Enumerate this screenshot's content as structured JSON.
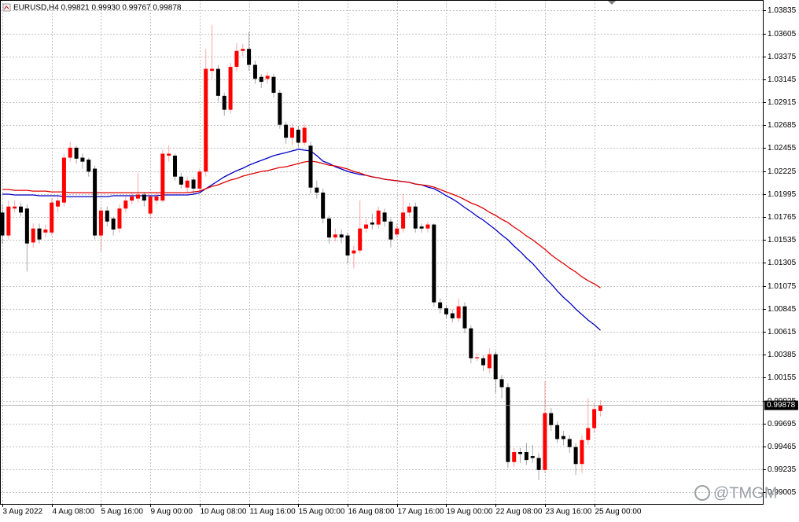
{
  "chart_data": {
    "type": "candlestick",
    "title": "EURUSD,H4  0.99821 0.99930 0.99767 0.99878",
    "categories": [
      "3 Aug 2022",
      null,
      null,
      null,
      null,
      null,
      null,
      null,
      "4 Aug 08:00",
      null,
      null,
      null,
      null,
      null,
      null,
      null,
      "5 Aug 16:00",
      null,
      null,
      null,
      null,
      null,
      null,
      null,
      "9 Aug 00:00",
      null,
      null,
      null,
      null,
      null,
      null,
      null,
      "10 Aug 08:00",
      null,
      null,
      null,
      null,
      null,
      null,
      null,
      "11 Aug 16:00",
      null,
      null,
      null,
      null,
      null,
      null,
      null,
      "15 Aug 00:00",
      null,
      null,
      null,
      null,
      null,
      null,
      null,
      "16 Aug 08:00",
      null,
      null,
      null,
      null,
      null,
      null,
      null,
      "17 Aug 16:00",
      null,
      null,
      null,
      null,
      null,
      null,
      null,
      "19 Aug 00:00",
      null,
      null,
      null,
      null,
      null,
      null,
      null,
      "22 Aug 08:00",
      null,
      null,
      null,
      null,
      null,
      null,
      null,
      "23 Aug 16:00",
      null,
      null,
      null,
      null,
      null,
      null,
      null,
      "25 Aug 00:00",
      null
    ],
    "open": [
      1.0181,
      1.0158,
      1.0185,
      1.0187,
      1.0185,
      1.0151,
      1.0165,
      1.0161,
      1.0161,
      1.0187,
      1.0191,
      1.0236,
      1.0246,
      1.0236,
      1.0234,
      1.0225,
      1.0158,
      1.0183,
      1.0175,
      1.0165,
      1.0185,
      1.0193,
      1.0195,
      1.0199,
      1.018,
      1.0193,
      1.0193,
      1.0238,
      1.0238,
      1.0217,
      1.0206,
      1.0214,
      1.0205,
      1.0222,
      1.0323,
      1.0325,
      1.0298,
      1.0284,
      1.0327,
      1.0343,
      1.0345,
      1.0329,
      1.0317,
      1.0315,
      1.0317,
      1.0301,
      1.0269,
      1.0256,
      1.0264,
      1.0251,
      1.0248,
      1.0206,
      1.0201,
      1.0175,
      1.0156,
      1.0159,
      1.0158,
      1.014,
      1.0143,
      1.0165,
      1.0171,
      1.0169,
      1.0181,
      1.0172,
      1.0159,
      1.0165,
      1.0181,
      1.0187,
      1.0167,
      1.0165,
      1.0169,
      1.0091,
      1.0085,
      1.008,
      1.0075,
      1.0087,
      1.0065,
      1.0035,
      1.0035,
      1.0025,
      1.0039,
      1.0014,
      1.0006,
      0.9931,
      0.9941,
      0.9941,
      0.9937,
      0.9935,
      0.9923,
      0.998,
      0.9968,
      0.9957,
      0.9954,
      0.9946,
      0.9929,
      0.9953,
      0.9965,
      0.99821
    ],
    "high": [
      1.0189,
      1.0193,
      1.0193,
      1.0191,
      1.0189,
      1.017,
      1.017,
      1.0169,
      1.0195,
      1.0197,
      1.024,
      1.0252,
      1.0248,
      1.024,
      1.0236,
      1.0228,
      1.0187,
      1.0187,
      1.0177,
      1.0189,
      1.0197,
      1.0201,
      1.0221,
      1.0201,
      1.0199,
      1.0201,
      1.0244,
      1.0248,
      1.024,
      1.0221,
      1.0217,
      1.0217,
      1.0225,
      1.0345,
      1.0369,
      1.0329,
      1.0301,
      1.0331,
      1.0351,
      1.035,
      1.0362,
      1.0333,
      1.032,
      1.0322,
      1.032,
      1.0304,
      1.0272,
      1.027,
      1.0268,
      1.027,
      1.0252,
      1.0213,
      1.0205,
      1.0178,
      1.0165,
      1.0164,
      1.0161,
      1.0148,
      1.0193,
      1.0175,
      1.018,
      1.0187,
      1.0185,
      1.0175,
      1.017,
      1.02,
      1.0191,
      1.0191,
      1.017,
      1.0172,
      1.017,
      1.0095,
      1.0088,
      1.0084,
      1.0095,
      1.0091,
      1.0068,
      1.004,
      1.0038,
      1.0045,
      1.0042,
      1.0018,
      1.001,
      0.9945,
      0.9945,
      0.995,
      0.9948,
      0.994,
      1.0012,
      0.9985,
      0.9972,
      0.9962,
      0.9958,
      0.995,
      0.9958,
      0.9995,
      0.999,
      0.9993
    ],
    "low": [
      1.015,
      1.0154,
      1.0181,
      1.0177,
      1.0122,
      1.0146,
      1.015,
      1.0156,
      1.0158,
      1.0181,
      1.0187,
      1.0232,
      1.023,
      1.0225,
      1.0217,
      1.0154,
      1.0142,
      1.0167,
      1.0158,
      1.0161,
      1.0181,
      1.0189,
      1.0191,
      1.0187,
      1.0175,
      1.0189,
      1.0191,
      1.0232,
      1.0213,
      1.0205,
      1.0201,
      1.0199,
      1.0201,
      1.0217,
      1.0315,
      1.0292,
      1.0278,
      1.028,
      1.0323,
      1.0338,
      1.0323,
      1.031,
      1.0306,
      1.031,
      1.0296,
      1.0265,
      1.025,
      1.0248,
      1.0246,
      1.0248,
      1.02,
      1.0195,
      1.017,
      1.015,
      1.0152,
      1.015,
      1.013,
      1.0125,
      1.014,
      1.0161,
      1.0164,
      1.0165,
      1.0167,
      1.0146,
      1.0156,
      1.0161,
      1.0177,
      1.0161,
      1.0161,
      1.0161,
      1.0087,
      1.008,
      1.0075,
      1.0071,
      1.0071,
      1.006,
      1.003,
      1.0032,
      1.0022,
      1.002,
      1.0,
      0.9995,
      0.9925,
      0.9926,
      0.993,
      0.9928,
      0.993,
      0.9913,
      0.992,
      0.9962,
      0.995,
      0.9948,
      0.994,
      0.9918,
      0.992,
      0.9948,
      0.996,
      0.99767
    ],
    "close": [
      1.0158,
      1.0187,
      1.0187,
      1.0181,
      1.015,
      1.0165,
      1.0154,
      1.0164,
      1.0191,
      1.0193,
      1.0236,
      1.0246,
      1.0235,
      1.0232,
      1.0222,
      1.0158,
      1.0183,
      1.0172,
      1.0164,
      1.0185,
      1.0193,
      1.0197,
      1.0199,
      1.0193,
      1.0197,
      1.0197,
      1.024,
      1.024,
      1.0217,
      1.0209,
      1.0213,
      1.0205,
      1.0222,
      1.0325,
      1.0325,
      1.0298,
      1.0284,
      1.0327,
      1.0343,
      1.0345,
      1.0329,
      1.0315,
      1.0312,
      1.0318,
      1.0301,
      1.0269,
      1.0256,
      1.0266,
      1.0251,
      1.0266,
      1.0206,
      1.0201,
      1.0175,
      1.0156,
      1.0159,
      1.0156,
      1.0138,
      1.0143,
      1.0165,
      1.0169,
      1.0169,
      1.0183,
      1.0172,
      1.0154,
      1.0165,
      1.0181,
      1.0187,
      1.0165,
      1.0165,
      1.0169,
      1.0091,
      1.0085,
      1.0079,
      1.0075,
      1.0087,
      1.0065,
      1.0035,
      1.0036,
      1.0028,
      1.0039,
      1.0014,
      1.0006,
      0.9931,
      0.9941,
      0.9939,
      0.9933,
      0.9935,
      0.9923,
      0.998,
      0.9968,
      0.9954,
      0.9954,
      0.9946,
      0.9929,
      0.9953,
      0.9965,
      0.9984,
      0.99878
    ],
    "up_color": "#ff0000",
    "down_color": "#000000",
    "lines": [
      {
        "color": "#0000c8",
        "values": [
          1.01994,
          1.01994,
          1.01986,
          1.01986,
          1.01986,
          1.01986,
          1.01978,
          1.01978,
          1.01978,
          1.01978,
          1.0197,
          1.0197,
          1.0197,
          1.0197,
          1.0197,
          1.0197,
          1.0197,
          1.0197,
          1.01978,
          1.01978,
          1.01978,
          1.01978,
          1.01978,
          1.01978,
          1.01978,
          1.01978,
          1.01986,
          1.01986,
          1.01986,
          1.01986,
          1.01986,
          1.01994,
          1.02009,
          1.02049,
          1.02088,
          1.02128,
          1.02167,
          1.02199,
          1.0223,
          1.02254,
          1.02285,
          1.02309,
          1.02333,
          1.02356,
          1.0238,
          1.02396,
          1.02411,
          1.02427,
          1.02443,
          1.02435,
          1.02427,
          1.0238,
          1.02325,
          1.02301,
          1.02269,
          1.02246,
          1.02222,
          1.02206,
          1.02191,
          1.02183,
          1.02167,
          1.02159,
          1.02143,
          1.02136,
          1.02128,
          1.0212,
          1.02112,
          1.02096,
          1.02088,
          1.02065,
          1.02049,
          1.02017,
          1.01978,
          1.01946,
          1.01907,
          1.0186,
          1.0182,
          1.01773,
          1.01734,
          1.01686,
          1.01639,
          1.01584,
          1.01537,
          1.01474,
          1.01418,
          1.01355,
          1.013,
          1.01229,
          1.01158,
          1.01095,
          1.01024,
          1.00961,
          1.00906,
          1.00843,
          1.00788,
          1.00733,
          1.00686,
          1.0063
        ]
      },
      {
        "color": "#e00000",
        "values": [
          1.02041,
          1.02041,
          1.02033,
          1.02033,
          1.02033,
          1.02025,
          1.02025,
          1.02025,
          1.02017,
          1.02017,
          1.02017,
          1.02009,
          1.02009,
          1.02009,
          1.02009,
          1.02009,
          1.02009,
          1.02009,
          1.02009,
          1.02009,
          1.02009,
          1.02009,
          1.02009,
          1.02009,
          1.02009,
          1.02009,
          1.02009,
          1.02009,
          1.02009,
          1.02009,
          1.02009,
          1.02017,
          1.02025,
          1.02049,
          1.02072,
          1.02088,
          1.02112,
          1.02136,
          1.02151,
          1.02175,
          1.02191,
          1.02206,
          1.02222,
          1.0223,
          1.02246,
          1.02262,
          1.02269,
          1.02285,
          1.02301,
          1.02317,
          1.02325,
          1.02317,
          1.02301,
          1.02285,
          1.02277,
          1.02262,
          1.02246,
          1.02222,
          1.02206,
          1.02183,
          1.02167,
          1.02159,
          1.02143,
          1.02136,
          1.02128,
          1.0212,
          1.02112,
          1.02096,
          1.02088,
          1.0208,
          1.02065,
          1.02041,
          1.02017,
          1.01994,
          1.0197,
          1.01939,
          1.01907,
          1.01883,
          1.01852,
          1.01812,
          1.01781,
          1.01742,
          1.0171,
          1.01663,
          1.01623,
          1.01576,
          1.01537,
          1.01489,
          1.01442,
          1.01387,
          1.0134,
          1.013,
          1.01253,
          1.01214,
          1.01166,
          1.01127,
          1.01095,
          1.01056
        ]
      }
    ],
    "ylim": [
      0.9889,
      1.0394
    ],
    "yticks": [
      1.03835,
      1.03605,
      1.03375,
      1.03145,
      1.02915,
      1.02685,
      1.02455,
      1.02225,
      1.01995,
      1.01765,
      1.01535,
      1.01305,
      1.01075,
      1.00845,
      1.00615,
      1.00385,
      1.00155,
      0.99925,
      0.99695,
      0.99465,
      0.99235,
      0.99005
    ],
    "last_price": 0.99878,
    "grid": true,
    "watermark": "@TMGM"
  }
}
